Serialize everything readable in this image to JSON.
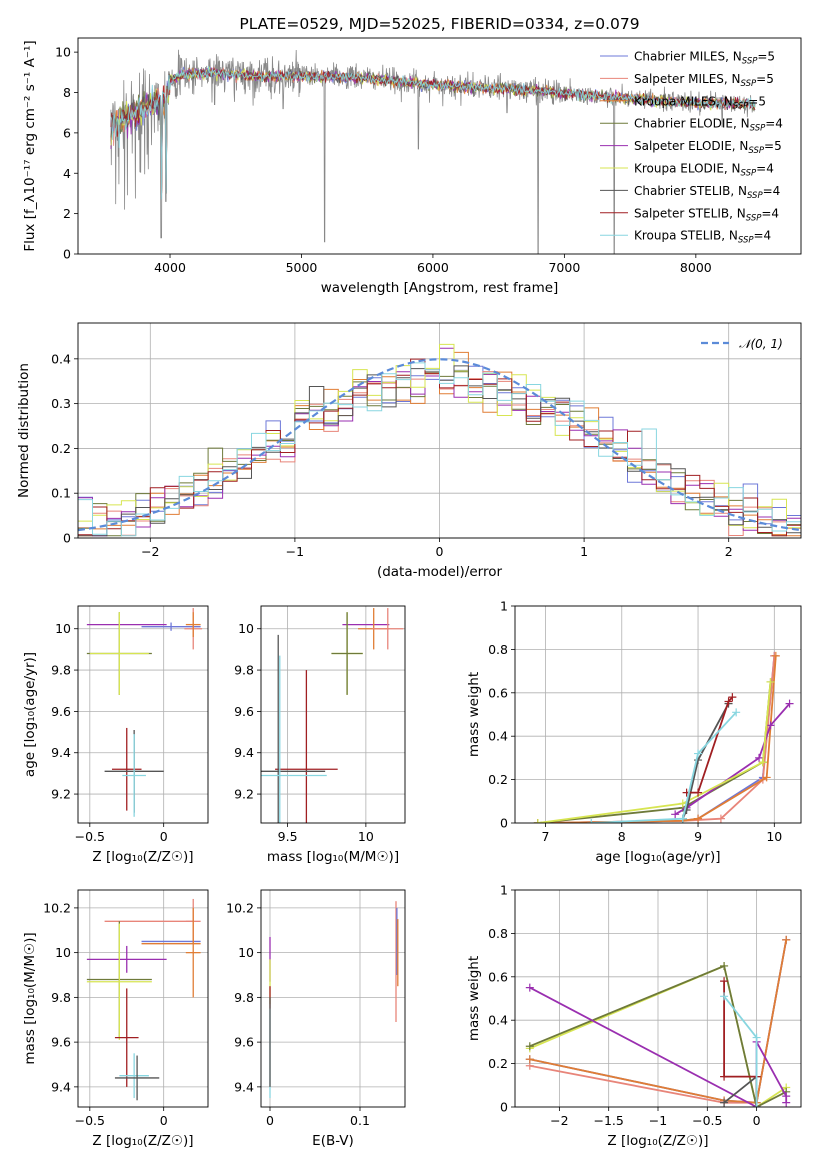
{
  "colors": {
    "chabrier_miles": "#6e78d8",
    "salpeter_miles": "#e8857a",
    "kroupa_miles": "#e07d35",
    "chabrier_elodie": "#6e7a3a",
    "salpeter_elodie": "#9a2fb0",
    "kroupa_elodie": "#d7e552",
    "chabrier_stelib": "#555555",
    "salpeter_stelib": "#a01f22",
    "kroupa_stelib": "#88d6e0",
    "normal": "#5b8bd8",
    "data": "#888888"
  },
  "chart_data": [
    {
      "id": "spectrum",
      "type": "line",
      "title": "PLATE=0529, MJD=52025, FIBERID=0334, z=0.079",
      "xlabel": "wavelength [Angstrom, rest frame]",
      "ylabel": "Flux [f_λ10⁻¹⁷ erg cm⁻² s⁻¹ A⁻¹]",
      "xlim": [
        3300,
        8800
      ],
      "ylim": [
        0,
        10.7
      ],
      "xticks": [
        4000,
        5000,
        6000,
        7000,
        8000
      ],
      "yticks": [
        0,
        2,
        4,
        6,
        8,
        10
      ],
      "legend_position": "right",
      "legend": [
        {
          "label": "Chabrier MILES, N",
          "sub": "SSP",
          "suffix": "=5",
          "color_key": "chabrier_miles"
        },
        {
          "label": "Salpeter MILES, N",
          "sub": "SSP",
          "suffix": "=5",
          "color_key": "salpeter_miles"
        },
        {
          "label": "Kroupa MILES, N",
          "sub": "SSP",
          "suffix": "=5",
          "color_key": "kroupa_miles"
        },
        {
          "label": "Chabrier ELODIE, N",
          "sub": "SSP",
          "suffix": "=4",
          "color_key": "chabrier_elodie"
        },
        {
          "label": "Salpeter ELODIE, N",
          "sub": "SSP",
          "suffix": "=5",
          "color_key": "salpeter_elodie"
        },
        {
          "label": "Kroupa ELODIE, N",
          "sub": "SSP",
          "suffix": "=4",
          "color_key": "kroupa_elodie"
        },
        {
          "label": "Chabrier STELIB, N",
          "sub": "SSP",
          "suffix": "=4",
          "color_key": "chabrier_stelib"
        },
        {
          "label": "Salpeter STELIB, N",
          "sub": "SSP",
          "suffix": "=4",
          "color_key": "salpeter_stelib"
        },
        {
          "label": "Kroupa STELIB, N",
          "sub": "SSP",
          "suffix": "=4",
          "color_key": "kroupa_stelib"
        }
      ],
      "data_x_range": [
        3550,
        8450
      ],
      "continuum": [
        [
          3550,
          6.3
        ],
        [
          3700,
          6.9
        ],
        [
          3850,
          7.4
        ],
        [
          3950,
          7.6
        ],
        [
          4000,
          8.6
        ],
        [
          4100,
          8.9
        ],
        [
          4300,
          9.0
        ],
        [
          4500,
          8.9
        ],
        [
          4700,
          8.8
        ],
        [
          4900,
          8.8
        ],
        [
          5200,
          8.8
        ],
        [
          5500,
          8.7
        ],
        [
          5800,
          8.5
        ],
        [
          6000,
          8.4
        ],
        [
          6200,
          8.3
        ],
        [
          6500,
          8.2
        ],
        [
          6800,
          8.1
        ],
        [
          7100,
          7.9
        ],
        [
          7400,
          7.75
        ],
        [
          7700,
          7.6
        ],
        [
          8000,
          7.5
        ],
        [
          8300,
          7.45
        ],
        [
          8450,
          7.4
        ]
      ],
      "absorption": [
        [
          3933,
          0.8
        ],
        [
          3968,
          2.6
        ],
        [
          4340,
          7.4
        ],
        [
          4861,
          7.2
        ],
        [
          5175,
          0.6
        ],
        [
          5890,
          5.2
        ],
        [
          6563,
          7.0
        ],
        [
          6800,
          0
        ],
        [
          7380,
          0
        ],
        [
          8200,
          6.3
        ]
      ]
    },
    {
      "id": "residuals",
      "type": "histogram",
      "xlabel": "(data-model)/error",
      "ylabel": "Normed distribution",
      "xlim": [
        -2.5,
        2.5
      ],
      "ylim": [
        0,
        0.48
      ],
      "xticks": [
        -2,
        -1,
        0,
        1,
        2
      ],
      "yticks": [
        0.0,
        0.1,
        0.2,
        0.3,
        0.4
      ],
      "grid": true,
      "legend_position": "top-right",
      "normal_label": "𝒩(0, 1)",
      "bin_width": 0.1
    },
    {
      "id": "age_vs_Z",
      "type": "errorbar",
      "xlabel": "Z [log₁₀(Z/Z☉)]",
      "ylabel": "age  [log₁₀(age/yr)]",
      "xlim": [
        -0.58,
        0.3
      ],
      "ylim": [
        9.06,
        10.11
      ],
      "xticks": [
        -0.5,
        0.0
      ],
      "yticks": [
        9.2,
        9.4,
        9.6,
        9.8,
        10.0
      ],
      "grid": true,
      "points": [
        {
          "x": -0.25,
          "xe": 0.27,
          "y": 10.02,
          "ye": 0.0,
          "c": "salpeter_elodie"
        },
        {
          "x": 0.05,
          "xe": 0.2,
          "y": 10.01,
          "ye": 0.02,
          "c": "chabrier_miles"
        },
        {
          "x": 0.2,
          "xe": 0.06,
          "y": 10.0,
          "ye": 0.1,
          "c": "salpeter_miles"
        },
        {
          "x": 0.2,
          "xe": 0.05,
          "y": 10.02,
          "ye": 0.06,
          "c": "kroupa_miles"
        },
        {
          "x": -0.3,
          "xe": 0.22,
          "y": 9.88,
          "ye": 0.2,
          "c": "chabrier_elodie"
        },
        {
          "x": -0.3,
          "xe": 0.2,
          "y": 9.88,
          "ye": 0.2,
          "c": "kroupa_elodie"
        },
        {
          "x": -0.25,
          "xe": 0.1,
          "y": 9.32,
          "ye": 0.2,
          "c": "salpeter_stelib"
        },
        {
          "x": -0.2,
          "xe": 0.2,
          "y": 9.31,
          "ye": 0.2,
          "c": "chabrier_stelib"
        },
        {
          "x": -0.2,
          "xe": 0.08,
          "y": 9.29,
          "ye": 0.2,
          "c": "kroupa_stelib"
        }
      ]
    },
    {
      "id": "age_vs_mass",
      "type": "errorbar",
      "xlabel": "mass [log₁₀(M/M☉)]",
      "ylabel": "",
      "xlim": [
        9.33,
        10.25
      ],
      "ylim": [
        9.06,
        10.11
      ],
      "xticks": [
        9.5,
        10.0
      ],
      "yticks": [
        9.2,
        9.4,
        9.6,
        9.8,
        10.0
      ],
      "grid": true,
      "points": [
        {
          "x": 10.0,
          "xe": 0.15,
          "y": 10.02,
          "ye": 0.0,
          "c": "salpeter_elodie"
        },
        {
          "x": 10.05,
          "xe": 0.1,
          "y": 10.0,
          "ye": 0.1,
          "c": "kroupa_miles"
        },
        {
          "x": 10.14,
          "xe": 0.1,
          "y": 10.0,
          "ye": 0.1,
          "c": "salpeter_miles"
        },
        {
          "x": 9.88,
          "xe": 0.1,
          "y": 9.88,
          "ye": 0.2,
          "c": "kroupa_elodie"
        },
        {
          "x": 9.88,
          "xe": 0.1,
          "y": 9.88,
          "ye": 0.2,
          "c": "chabrier_elodie"
        },
        {
          "x": 9.62,
          "xe": 0.2,
          "y": 9.32,
          "ye": 0.48,
          "c": "salpeter_stelib"
        },
        {
          "x": 9.44,
          "xe": 0.3,
          "y": 9.31,
          "ye": 0.66,
          "c": "chabrier_stelib"
        },
        {
          "x": 9.45,
          "xe": 0.3,
          "y": 9.29,
          "ye": 0.58,
          "c": "kroupa_stelib"
        }
      ]
    },
    {
      "id": "mw_vs_age",
      "type": "line",
      "xlabel": "age  [log₁₀(age/yr)]",
      "ylabel": "mass weight",
      "xlim": [
        6.6,
        10.35
      ],
      "ylim": [
        0,
        1.0
      ],
      "xticks": [
        7,
        8,
        9,
        10
      ],
      "yticks": [
        0.0,
        0.2,
        0.4,
        0.6,
        0.8,
        1.0
      ],
      "grid": true,
      "series": [
        {
          "c": "chabrier_miles",
          "pts": [
            [
              6.9,
              0.0
            ],
            [
              8.8,
              0.01
            ],
            [
              9.0,
              0.02
            ],
            [
              9.85,
              0.21
            ],
            [
              10.0,
              0.77
            ]
          ]
        },
        {
          "c": "salpeter_miles",
          "pts": [
            [
              6.9,
              0.0
            ],
            [
              8.8,
              0.01
            ],
            [
              9.3,
              0.02
            ],
            [
              9.85,
              0.2
            ],
            [
              10.0,
              0.77
            ]
          ]
        },
        {
          "c": "kroupa_miles",
          "pts": [
            [
              6.9,
              0.0
            ],
            [
              8.8,
              0.01
            ],
            [
              9.0,
              0.02
            ],
            [
              9.9,
              0.21
            ],
            [
              10.02,
              0.77
            ]
          ]
        },
        {
          "c": "chabrier_elodie",
          "pts": [
            [
              6.9,
              0.0
            ],
            [
              8.8,
              0.07
            ],
            [
              9.85,
              0.28
            ],
            [
              9.95,
              0.65
            ]
          ]
        },
        {
          "c": "salpeter_elodie",
          "pts": [
            [
              8.7,
              0.04
            ],
            [
              8.85,
              0.07
            ],
            [
              9.8,
              0.3
            ],
            [
              9.95,
              0.45
            ],
            [
              10.2,
              0.55
            ]
          ]
        },
        {
          "c": "kroupa_elodie",
          "pts": [
            [
              6.9,
              0.0
            ],
            [
              8.8,
              0.09
            ],
            [
              9.85,
              0.28
            ],
            [
              9.95,
              0.65
            ]
          ]
        },
        {
          "c": "chabrier_stelib",
          "pts": [
            [
              8.8,
              0.02
            ],
            [
              8.85,
              0.06
            ],
            [
              9.0,
              0.29
            ],
            [
              9.4,
              0.55
            ]
          ]
        },
        {
          "c": "salpeter_stelib",
          "pts": [
            [
              8.85,
              0.14
            ],
            [
              9.0,
              0.14
            ],
            [
              9.4,
              0.56
            ],
            [
              9.45,
              0.58
            ]
          ]
        },
        {
          "c": "kroupa_stelib",
          "pts": [
            [
              7.6,
              0.0
            ],
            [
              8.8,
              0.02
            ],
            [
              9.0,
              0.32
            ],
            [
              9.5,
              0.51
            ]
          ]
        }
      ]
    },
    {
      "id": "mass_vs_Z",
      "type": "errorbar",
      "xlabel": "Z [log₁₀(Z/Z☉)]",
      "ylabel": "mass [log₁₀(M/M☉)]",
      "xlim": [
        -0.58,
        0.3
      ],
      "ylim": [
        9.31,
        10.28
      ],
      "xticks": [
        -0.5,
        0.0
      ],
      "yticks": [
        9.4,
        9.6,
        9.8,
        10.0,
        10.2
      ],
      "grid": true,
      "points": [
        {
          "x": -0.1,
          "xe": 0.3,
          "y": 10.14,
          "ye": 0.0,
          "c": "salpeter_miles"
        },
        {
          "x": 0.2,
          "xe": 0.05,
          "y": 10.14,
          "ye": 0.1,
          "c": "salpeter_miles"
        },
        {
          "x": 0.05,
          "xe": 0.2,
          "y": 10.05,
          "ye": 0.0,
          "c": "chabrier_miles"
        },
        {
          "x": 0.05,
          "xe": 0.2,
          "y": 10.04,
          "ye": 0.0,
          "c": "kroupa_miles"
        },
        {
          "x": 0.2,
          "xe": 0.05,
          "y": 10.0,
          "ye": 0.2,
          "c": "kroupa_miles"
        },
        {
          "x": -0.25,
          "xe": 0.27,
          "y": 9.97,
          "ye": 0.06,
          "c": "salpeter_elodie"
        },
        {
          "x": -0.3,
          "xe": 0.22,
          "y": 9.88,
          "ye": 0.26,
          "c": "chabrier_elodie"
        },
        {
          "x": -0.3,
          "xe": 0.22,
          "y": 9.87,
          "ye": 0.26,
          "c": "kroupa_elodie"
        },
        {
          "x": -0.25,
          "xe": 0.08,
          "y": 9.62,
          "ye": 0.22,
          "c": "salpeter_stelib"
        },
        {
          "x": -0.2,
          "xe": 0.1,
          "y": 9.45,
          "ye": 0.1,
          "c": "kroupa_stelib"
        },
        {
          "x": -0.18,
          "xe": 0.15,
          "y": 9.44,
          "ye": 0.1,
          "c": "chabrier_stelib"
        }
      ]
    },
    {
      "id": "mass_vs_ebv",
      "type": "errorbar",
      "xlabel": "E(B-V)",
      "ylabel": "",
      "xlim": [
        -0.01,
        0.15
      ],
      "ylim": [
        9.31,
        10.28
      ],
      "xticks": [
        0.0,
        0.1
      ],
      "yticks": [
        9.4,
        9.6,
        9.8,
        10.0,
        10.2
      ],
      "grid": true,
      "points": [
        {
          "x": 0.0,
          "xe": 0,
          "y": 9.97,
          "ye": 0.1,
          "c": "salpeter_elodie"
        },
        {
          "x": 0.0,
          "xe": 0,
          "y": 9.87,
          "ye": 0.1,
          "c": "kroupa_elodie"
        },
        {
          "x": 0.0,
          "xe": 0,
          "y": 9.8,
          "ye": 0.05,
          "c": "salpeter_stelib"
        },
        {
          "x": 0.0,
          "xe": 0,
          "y": 9.55,
          "ye": 0.2,
          "c": "kroupa_stelib"
        },
        {
          "x": 0.0,
          "xe": 0,
          "y": 9.6,
          "ye": 0.2,
          "c": "chabrier_stelib"
        },
        {
          "x": 0.14,
          "xe": 0,
          "y": 9.96,
          "ye": 0.27,
          "c": "salpeter_miles"
        },
        {
          "x": 0.141,
          "xe": 0,
          "y": 10.05,
          "ye": 0.15,
          "c": "chabrier_miles"
        },
        {
          "x": 0.142,
          "xe": 0,
          "y": 10.0,
          "ye": 0.15,
          "c": "kroupa_miles"
        }
      ]
    },
    {
      "id": "mw_vs_Z",
      "type": "line",
      "xlabel": "Z [log₁₀(Z/Z☉)]",
      "ylabel": "mass weight",
      "xlim": [
        -2.45,
        0.45
      ],
      "ylim": [
        0,
        1.0
      ],
      "xticks": [
        -2.0,
        -1.5,
        -1.0,
        -0.5,
        0.0
      ],
      "yticks": [
        0.0,
        0.2,
        0.4,
        0.6,
        0.8,
        1.0
      ],
      "grid": true,
      "series": [
        {
          "c": "salpeter_miles",
          "pts": [
            [
              -2.3,
              0.19
            ],
            [
              -0.33,
              0.02
            ],
            [
              0.0,
              0.02
            ],
            [
              0.3,
              0.77
            ]
          ]
        },
        {
          "c": "chabrier_miles",
          "pts": [
            [
              -2.3,
              0.22
            ],
            [
              -0.33,
              0.03
            ],
            [
              0.0,
              0.02
            ],
            [
              0.3,
              0.77
            ]
          ]
        },
        {
          "c": "kroupa_miles",
          "pts": [
            [
              -2.3,
              0.22
            ],
            [
              -0.33,
              0.03
            ],
            [
              0.0,
              0.02
            ],
            [
              0.3,
              0.77
            ]
          ]
        },
        {
          "c": "kroupa_elodie",
          "pts": [
            [
              -2.3,
              0.27
            ],
            [
              -0.33,
              0.65
            ],
            [
              0.0,
              0.0
            ],
            [
              0.3,
              0.09
            ]
          ]
        },
        {
          "c": "chabrier_elodie",
          "pts": [
            [
              -2.3,
              0.28
            ],
            [
              -0.33,
              0.65
            ],
            [
              0.0,
              0.0
            ],
            [
              0.3,
              0.07
            ]
          ]
        },
        {
          "c": "salpeter_elodie",
          "pts": [
            [
              -2.3,
              0.55
            ],
            [
              0.0,
              0.0
            ],
            [
              0.0,
              0.3
            ],
            [
              0.3,
              0.05
            ],
            [
              0.3,
              0.02
            ]
          ]
        },
        {
          "c": "chabrier_stelib",
          "pts": [
            [
              -0.33,
              0.02
            ],
            [
              0.0,
              0.14
            ],
            [
              0.0,
              0.0
            ]
          ]
        },
        {
          "c": "salpeter_stelib",
          "pts": [
            [
              -0.33,
              0.58
            ],
            [
              -0.33,
              0.14
            ],
            [
              0.0,
              0.14
            ],
            [
              0.0,
              0.0
            ]
          ]
        },
        {
          "c": "kroupa_stelib",
          "pts": [
            [
              -0.33,
              0.51
            ],
            [
              0.0,
              0.32
            ],
            [
              0.0,
              0.0
            ]
          ]
        }
      ]
    }
  ]
}
